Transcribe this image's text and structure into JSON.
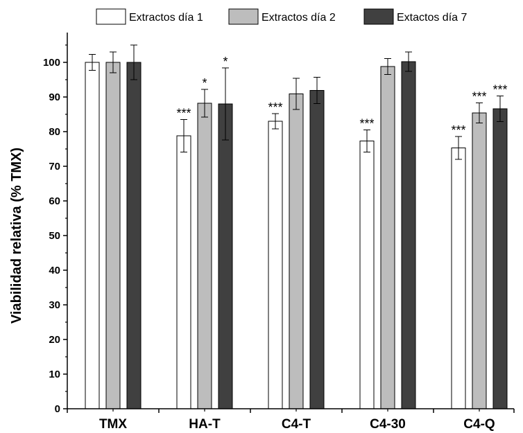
{
  "chart_data": {
    "type": "bar",
    "title": "",
    "xlabel": "",
    "ylabel": "Viabilidad relativa (% TMX)",
    "ylim": [
      0,
      110
    ],
    "yticks": [
      0,
      10,
      20,
      30,
      40,
      50,
      60,
      70,
      80,
      90,
      100
    ],
    "categories": [
      "TMX",
      "HA-T",
      "C4-T",
      "C4-30",
      "C4-Q"
    ],
    "grid": false,
    "legend_position": "top",
    "series": [
      {
        "name": "Extractos día 1",
        "color": "#ffffff",
        "values": [
          100,
          78.8,
          83.0,
          77.3,
          75.3
        ],
        "errors": [
          2.3,
          4.7,
          2.2,
          3.2,
          3.3
        ],
        "significance": [
          "",
          "***",
          "***",
          "***",
          "***"
        ]
      },
      {
        "name": "Extractos  día 2",
        "color": "#bdbdbd",
        "values": [
          100,
          88.2,
          90.9,
          98.8,
          85.4
        ],
        "errors": [
          3.0,
          4.0,
          4.5,
          2.3,
          2.9
        ],
        "significance": [
          "",
          "*",
          "",
          "",
          "***"
        ]
      },
      {
        "name": "Extactos día 7",
        "color": "#404040",
        "values": [
          100,
          88.0,
          91.9,
          100.2,
          86.6
        ],
        "errors": [
          5.0,
          10.4,
          3.8,
          2.8,
          3.7
        ],
        "significance": [
          "",
          "*",
          "",
          "",
          "***"
        ]
      }
    ]
  }
}
